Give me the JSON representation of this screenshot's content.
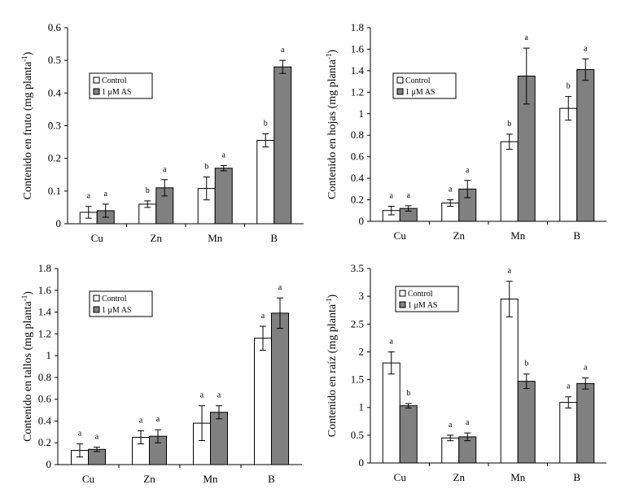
{
  "colors": {
    "control": "#ffffff",
    "treatment": "#808080",
    "axis": "#000000"
  },
  "legend": {
    "control": "Control",
    "treatment": "1 μM AS"
  },
  "chart_data": [
    {
      "type": "bar",
      "ylabel": "Contenido en fruto (mg planta-1)",
      "ylabel_main": "Contenido en fruto (mg planta",
      "ylabel_sup": "-1",
      "ylabel_close": ")",
      "categories": [
        "Cu",
        "Zn",
        "Mn",
        "B"
      ],
      "ylim": [
        0,
        0.6
      ],
      "yticks": [
        0,
        0.1,
        0.2,
        0.3,
        0.4,
        0.5,
        0.6
      ],
      "ytick_labels": [
        "0",
        "0.1",
        "0.2",
        "0.3",
        "0.4",
        "0.5",
        "0.6"
      ],
      "series": [
        {
          "name": "Control",
          "values": [
            0.035,
            0.06,
            0.108,
            0.255
          ],
          "errors": [
            0.018,
            0.01,
            0.035,
            0.02
          ],
          "letters": [
            "a",
            "b",
            "b",
            "b"
          ]
        },
        {
          "name": "1 μM AS",
          "values": [
            0.04,
            0.11,
            0.17,
            0.48
          ],
          "errors": [
            0.02,
            0.025,
            0.008,
            0.02
          ],
          "letters": [
            "a",
            "a",
            "a",
            "a"
          ]
        }
      ]
    },
    {
      "type": "bar",
      "ylabel": "Contenido en hojas (mg planta-1)",
      "ylabel_main": "Contenido en hojas (mg planta",
      "ylabel_sup": "-1",
      "ylabel_close": ")",
      "categories": [
        "Cu",
        "Zn",
        "Mn",
        "B"
      ],
      "ylim": [
        0,
        1.8
      ],
      "yticks": [
        0,
        0.2,
        0.4,
        0.6,
        0.8,
        1,
        1.2,
        1.4,
        1.6,
        1.8
      ],
      "ytick_labels": [
        "0",
        "0.2",
        "0.4",
        "0.6",
        "0.8",
        "1",
        "1.2",
        "1.4",
        "1.6",
        "1.8"
      ],
      "series": [
        {
          "name": "Control",
          "values": [
            0.1,
            0.17,
            0.74,
            1.05
          ],
          "errors": [
            0.04,
            0.03,
            0.07,
            0.11
          ],
          "letters": [
            "a",
            "a",
            "b",
            "b"
          ]
        },
        {
          "name": "1 μM AS",
          "values": [
            0.12,
            0.3,
            1.35,
            1.41
          ],
          "errors": [
            0.025,
            0.08,
            0.26,
            0.1
          ],
          "letters": [
            "a",
            "a",
            "a",
            "a"
          ]
        }
      ]
    },
    {
      "type": "bar",
      "ylabel": "Contenido en tallos (mg planta-1)",
      "ylabel_main": "Contenido en tallos (mg planta",
      "ylabel_sup": "-1",
      "ylabel_close": ")",
      "categories": [
        "Cu",
        "Zn",
        "Mn",
        "B"
      ],
      "ylim": [
        0,
        1.8
      ],
      "yticks": [
        0,
        0.2,
        0.4,
        0.6,
        0.8,
        1,
        1.2,
        1.4,
        1.6,
        1.8
      ],
      "ytick_labels": [
        "0",
        "0.2",
        "0.4",
        "0.6",
        "0.8",
        "1",
        "1.2",
        "1.4",
        "1.6",
        "1.8"
      ],
      "series": [
        {
          "name": "Control",
          "values": [
            0.13,
            0.25,
            0.38,
            1.16
          ],
          "errors": [
            0.06,
            0.06,
            0.16,
            0.11
          ],
          "letters": [
            "a",
            "a",
            "a",
            "a"
          ]
        },
        {
          "name": "1 μM AS",
          "values": [
            0.14,
            0.26,
            0.48,
            1.39
          ],
          "errors": [
            0.02,
            0.06,
            0.06,
            0.14
          ],
          "letters": [
            "a",
            "a",
            "a",
            "a"
          ]
        }
      ]
    },
    {
      "type": "bar",
      "ylabel": "Contenido en raíz (mg planta-1)",
      "ylabel_main": "Contenido en raíz (mg planta",
      "ylabel_sup": "-1",
      "ylabel_close": ")",
      "categories": [
        "Cu",
        "Zn",
        "Mn",
        "B"
      ],
      "ylim": [
        0,
        3.5
      ],
      "yticks": [
        0,
        0.5,
        1,
        1.5,
        2,
        2.5,
        3,
        3.5
      ],
      "ytick_labels": [
        "0",
        "0.5",
        "1",
        "1.5",
        "2",
        "2.5",
        "3",
        "3.5"
      ],
      "series": [
        {
          "name": "Control",
          "values": [
            1.8,
            0.45,
            2.95,
            1.09
          ],
          "errors": [
            0.2,
            0.05,
            0.32,
            0.1
          ],
          "letters": [
            "a",
            "a",
            "a",
            "a"
          ]
        },
        {
          "name": "1 μM AS",
          "values": [
            1.03,
            0.47,
            1.47,
            1.43
          ],
          "errors": [
            0.04,
            0.07,
            0.13,
            0.1
          ],
          "letters": [
            "b",
            "a",
            "b",
            "a"
          ]
        }
      ]
    }
  ]
}
